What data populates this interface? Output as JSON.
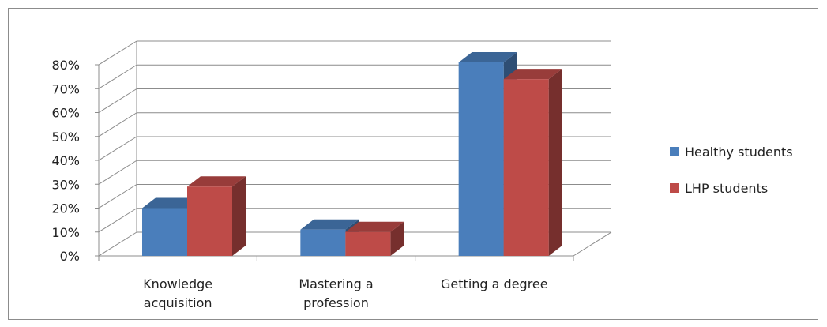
{
  "chart_data": {
    "type": "bar",
    "title": "",
    "xlabel": "",
    "ylabel": "",
    "categories": [
      [
        "Knowledge",
        "acquisition"
      ],
      [
        "Mastering a",
        "profession"
      ],
      [
        "Getting a degree"
      ]
    ],
    "series": [
      {
        "name": "Healthy students",
        "values": [
          0.2,
          0.11,
          0.81
        ]
      },
      {
        "name": "LHP students",
        "values": [
          0.29,
          0.1,
          0.74
        ]
      }
    ],
    "ylim": [
      0,
      0.8
    ],
    "yticks": [
      "0%",
      "10%",
      "20%",
      "30%",
      "40%",
      "50%",
      "60%",
      "70%",
      "80%"
    ],
    "grid": true,
    "legend": "right",
    "colors": {
      "series": [
        "#4a7ebb",
        "#be4b48"
      ],
      "grid": "#8c8c8c"
    }
  }
}
